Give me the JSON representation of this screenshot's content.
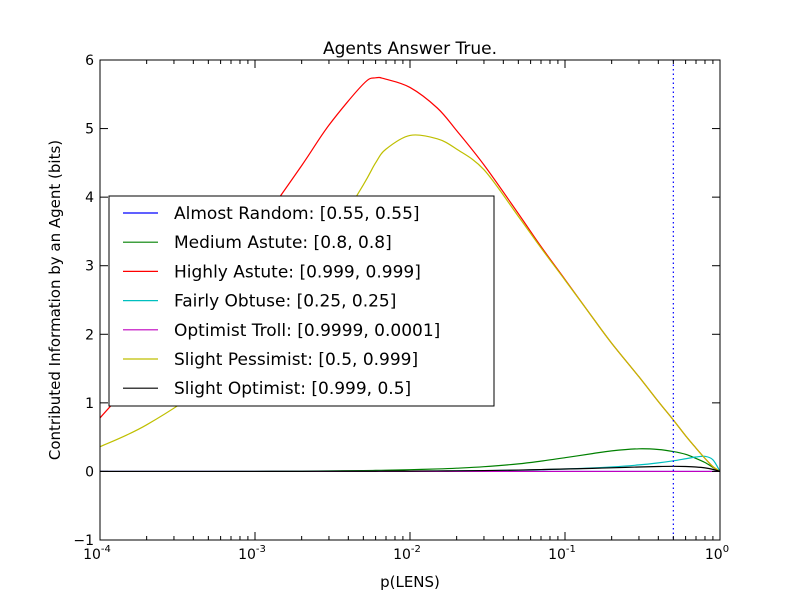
{
  "chart_data": {
    "type": "line",
    "title": "Agents Answer True.",
    "xlabel": "p(LENS)",
    "ylabel": "Contributed Information by an Agent (bits)",
    "xscale": "log",
    "xlim": [
      0.0001,
      1
    ],
    "ylim": [
      -1,
      6
    ],
    "x_ticks": [
      {
        "base": "10",
        "exp": "-4"
      },
      {
        "base": "10",
        "exp": "-3"
      },
      {
        "base": "10",
        "exp": "-2"
      },
      {
        "base": "10",
        "exp": "-1"
      },
      {
        "base": "10",
        "exp": "0"
      }
    ],
    "y_ticks": [
      "−1",
      "0",
      "1",
      "2",
      "3",
      "4",
      "5",
      "6"
    ],
    "grid": false,
    "legend_position": "center-left",
    "vline": {
      "x": 0.5,
      "color": "#0000ff",
      "style": "dotted"
    },
    "x": [
      0.0001,
      0.0002,
      0.0005,
      0.001,
      0.002,
      0.003,
      0.005,
      0.006,
      0.007,
      0.01,
      0.015,
      0.02,
      0.03,
      0.05,
      0.07,
      0.1,
      0.15,
      0.2,
      0.3,
      0.4,
      0.5,
      0.6,
      0.7,
      0.8,
      0.9,
      1.0
    ],
    "series": [
      {
        "name": "Almost Random: [0.55, 0.55]",
        "color": "#0000ff",
        "values": [
          0,
          0,
          0,
          0,
          0,
          0,
          0,
          0,
          0,
          0,
          0,
          0,
          0,
          0,
          0,
          0,
          0,
          0,
          0,
          0,
          0,
          0,
          0,
          0,
          0,
          0
        ]
      },
      {
        "name": "Medium Astute: [0.8, 0.8]",
        "color": "#008000",
        "values": [
          0.0,
          0.0,
          0.0,
          0.002,
          0.005,
          0.008,
          0.013,
          0.015,
          0.017,
          0.025,
          0.036,
          0.047,
          0.069,
          0.11,
          0.15,
          0.2,
          0.26,
          0.3,
          0.33,
          0.32,
          0.29,
          0.25,
          0.19,
          0.13,
          0.06,
          0.0
        ]
      },
      {
        "name": "Highly Astute: [0.999, 0.999]",
        "color": "#ff0000",
        "values": [
          0.78,
          1.55,
          2.62,
          3.5,
          4.46,
          5.05,
          5.65,
          5.74,
          5.72,
          5.6,
          5.3,
          4.97,
          4.47,
          3.76,
          3.28,
          2.8,
          2.25,
          1.87,
          1.38,
          1.02,
          0.75,
          0.52,
          0.34,
          0.19,
          0.07,
          0.0
        ]
      },
      {
        "name": "Fairly Obtuse: [0.25, 0.25]",
        "color": "#00bfbf",
        "values": [
          0,
          0,
          0,
          0,
          0.001,
          0.001,
          0.002,
          0.002,
          0.003,
          0.004,
          0.006,
          0.008,
          0.011,
          0.018,
          0.025,
          0.035,
          0.05,
          0.065,
          0.095,
          0.125,
          0.155,
          0.185,
          0.21,
          0.22,
          0.17,
          0.0
        ]
      },
      {
        "name": "Optimist Troll: [0.9999, 0.0001]",
        "color": "#bf00bf",
        "values": [
          0,
          0,
          0,
          0,
          0,
          0,
          0,
          0,
          0,
          0,
          0,
          0,
          0,
          0,
          0,
          0,
          0,
          0,
          0,
          0,
          0,
          0,
          0,
          0,
          0,
          0
        ]
      },
      {
        "name": "Slight Pessimist: [0.5, 0.999]",
        "color": "#bfbf00",
        "values": [
          0.36,
          0.68,
          1.28,
          1.95,
          2.72,
          3.35,
          4.18,
          4.5,
          4.7,
          4.9,
          4.85,
          4.7,
          4.4,
          3.72,
          3.26,
          2.79,
          2.25,
          1.87,
          1.38,
          1.02,
          0.75,
          0.52,
          0.34,
          0.19,
          0.07,
          0.0
        ]
      },
      {
        "name": "Slight Optimist: [0.999, 0.5]",
        "color": "#000000",
        "values": [
          0,
          0,
          0,
          0,
          0.001,
          0.002,
          0.003,
          0.003,
          0.004,
          0.005,
          0.007,
          0.009,
          0.013,
          0.02,
          0.027,
          0.035,
          0.045,
          0.053,
          0.065,
          0.072,
          0.075,
          0.072,
          0.065,
          0.052,
          0.03,
          0.0
        ]
      }
    ]
  }
}
